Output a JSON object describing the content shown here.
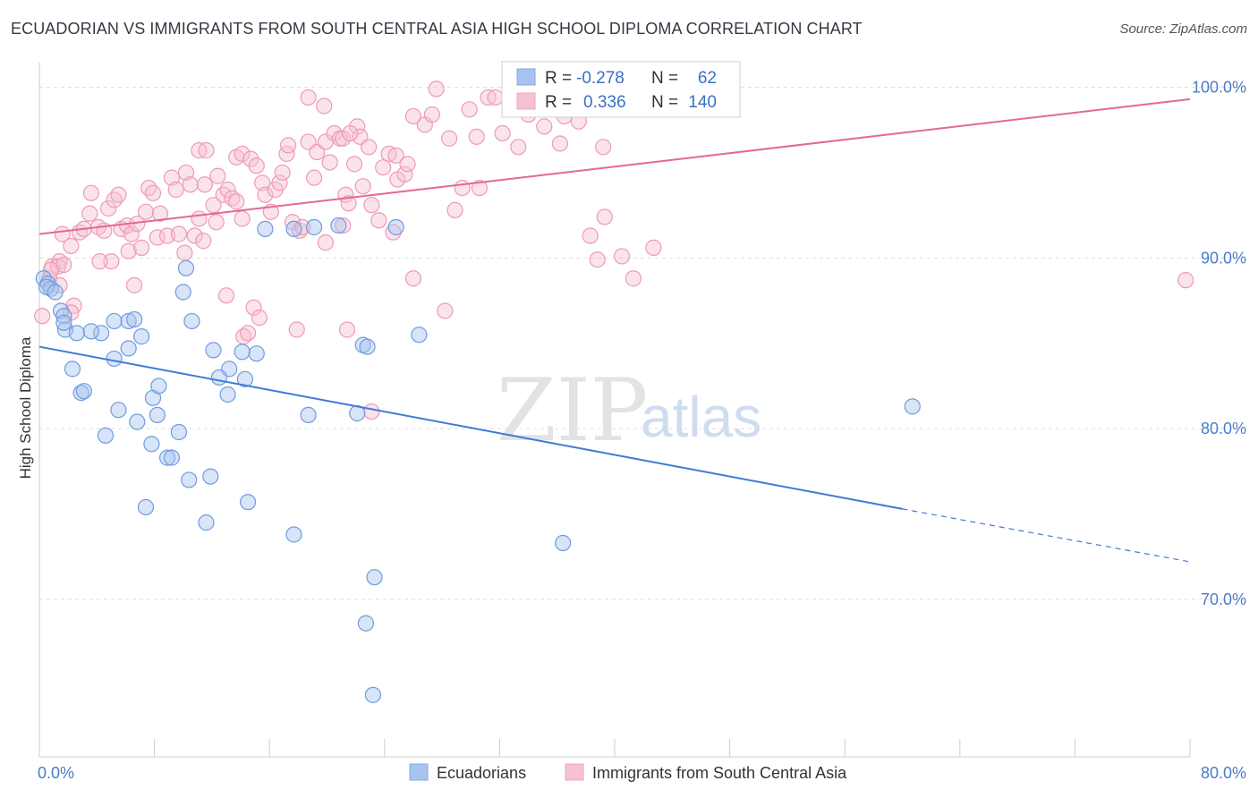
{
  "header": {
    "title": "ECUADORIAN VS IMMIGRANTS FROM SOUTH CENTRAL ASIA HIGH SCHOOL DIPLOMA CORRELATION CHART",
    "source": "Source: ZipAtlas.com"
  },
  "watermark": {
    "zip": "ZIP",
    "atlas": "atlas"
  },
  "legend_top": {
    "r_label": "R =",
    "n_label": "N =",
    "rows": [
      {
        "r": "-0.278",
        "n": "62",
        "color": "#7fa8e6"
      },
      {
        "r": "0.336",
        "n": "140",
        "color": "#f4a3bb"
      }
    ]
  },
  "legend_bottom": [
    {
      "label": "Ecuadorians",
      "color": "#7fa8e6"
    },
    {
      "label": "Immigrants from South Central Asia",
      "color": "#f4a3bb"
    }
  ],
  "colors": {
    "blue": "#3f7ad6",
    "pink": "#e36991",
    "blue_fill": "#a8c4ee",
    "pink_fill": "#f6c1d1",
    "grid": "#dddddd",
    "tick_text": "#4a7cc7"
  },
  "chart_data": {
    "type": "scatter",
    "title": "ECUADORIAN VS IMMIGRANTS FROM SOUTH CENTRAL ASIA HIGH SCHOOL DIPLOMA CORRELATION CHART",
    "ylabel": "High School Diploma",
    "xlabel": "",
    "xlim": [
      0,
      80
    ],
    "ylim": [
      62,
      101.5
    ],
    "x_tick_labels": [
      "0.0%",
      "80.0%"
    ],
    "y_ticks": [
      70,
      80,
      90,
      100
    ],
    "y_tick_labels": [
      "70.0%",
      "80.0%",
      "90.0%",
      "100.0%"
    ],
    "grid": "horizontal dashed",
    "series": [
      {
        "name": "Ecuadorians",
        "R": -0.278,
        "N": 62,
        "trend": {
          "x0": 0,
          "y0": 84.8,
          "x1": 60,
          "y1": 75.3,
          "dashed_to_x": 80,
          "dashed_y": 72.2
        },
        "points": [
          [
            0.3,
            88.8
          ],
          [
            0.6,
            88.5
          ],
          [
            0.8,
            88.2
          ],
          [
            0.5,
            88.3
          ],
          [
            1.1,
            88.0
          ],
          [
            1.5,
            86.9
          ],
          [
            1.7,
            86.6
          ],
          [
            1.8,
            85.8
          ],
          [
            1.7,
            86.2
          ],
          [
            2.6,
            85.6
          ],
          [
            4.3,
            85.6
          ],
          [
            3.6,
            85.7
          ],
          [
            5.2,
            86.3
          ],
          [
            6.2,
            86.3
          ],
          [
            6.6,
            86.4
          ],
          [
            7.1,
            85.4
          ],
          [
            6.2,
            84.7
          ],
          [
            5.2,
            84.1
          ],
          [
            2.3,
            83.5
          ],
          [
            2.9,
            82.1
          ],
          [
            3.1,
            82.2
          ],
          [
            5.5,
            81.1
          ],
          [
            6.8,
            80.4
          ],
          [
            7.9,
            81.8
          ],
          [
            8.3,
            82.5
          ],
          [
            8.2,
            80.8
          ],
          [
            9.7,
            79.8
          ],
          [
            7.8,
            79.1
          ],
          [
            4.6,
            79.6
          ],
          [
            8.9,
            78.3
          ],
          [
            9.2,
            78.3
          ],
          [
            10.4,
            77.0
          ],
          [
            11.9,
            77.2
          ],
          [
            7.4,
            75.4
          ],
          [
            11.6,
            74.5
          ],
          [
            14.5,
            75.7
          ],
          [
            17.7,
            73.8
          ],
          [
            12.1,
            84.6
          ],
          [
            13.2,
            83.5
          ],
          [
            12.5,
            83.0
          ],
          [
            14.1,
            84.5
          ],
          [
            15.1,
            84.4
          ],
          [
            14.3,
            82.9
          ],
          [
            13.1,
            82.0
          ],
          [
            18.7,
            80.8
          ],
          [
            22.1,
            80.9
          ],
          [
            22.5,
            84.9
          ],
          [
            22.8,
            84.8
          ],
          [
            10.2,
            89.4
          ],
          [
            10.0,
            88.0
          ],
          [
            10.6,
            86.3
          ],
          [
            15.7,
            91.7
          ],
          [
            17.7,
            91.7
          ],
          [
            19.1,
            91.8
          ],
          [
            20.8,
            91.9
          ],
          [
            24.8,
            91.8
          ],
          [
            26.4,
            85.5
          ],
          [
            23.3,
            71.3
          ],
          [
            22.7,
            68.6
          ],
          [
            23.2,
            64.4
          ],
          [
            60.7,
            81.3
          ],
          [
            36.4,
            73.3
          ]
        ]
      },
      {
        "name": "Immigrants from South Central Asia",
        "R": 0.336,
        "N": 140,
        "trend": {
          "x0": 0,
          "y0": 91.4,
          "x1": 80,
          "y1": 99.3
        },
        "points": [
          [
            0.2,
            86.6
          ],
          [
            0.7,
            88.8
          ],
          [
            0.9,
            89.5
          ],
          [
            1.4,
            89.8
          ],
          [
            1.3,
            89.5
          ],
          [
            1.7,
            89.6
          ],
          [
            0.8,
            89.3
          ],
          [
            1.4,
            88.4
          ],
          [
            2.4,
            87.2
          ],
          [
            2.2,
            86.8
          ],
          [
            1.6,
            91.4
          ],
          [
            2.2,
            90.7
          ],
          [
            2.8,
            91.5
          ],
          [
            3.1,
            91.7
          ],
          [
            3.5,
            92.6
          ],
          [
            3.6,
            93.8
          ],
          [
            4.1,
            91.8
          ],
          [
            4.5,
            91.6
          ],
          [
            4.8,
            92.9
          ],
          [
            5.2,
            93.4
          ],
          [
            5.5,
            93.7
          ],
          [
            5.0,
            89.8
          ],
          [
            5.7,
            91.7
          ],
          [
            6.1,
            91.9
          ],
          [
            6.2,
            90.4
          ],
          [
            7.1,
            90.6
          ],
          [
            6.4,
            91.4
          ],
          [
            6.8,
            92.0
          ],
          [
            7.4,
            92.7
          ],
          [
            7.6,
            94.1
          ],
          [
            7.9,
            93.8
          ],
          [
            8.4,
            92.6
          ],
          [
            8.2,
            91.2
          ],
          [
            8.9,
            91.3
          ],
          [
            9.2,
            94.7
          ],
          [
            9.5,
            94.0
          ],
          [
            9.7,
            91.4
          ],
          [
            10.2,
            95.0
          ],
          [
            10.5,
            94.3
          ],
          [
            10.1,
            90.3
          ],
          [
            10.8,
            91.3
          ],
          [
            11.1,
            92.3
          ],
          [
            11.4,
            91.0
          ],
          [
            11.5,
            94.3
          ],
          [
            11.1,
            96.3
          ],
          [
            11.6,
            96.3
          ],
          [
            12.1,
            93.1
          ],
          [
            12.3,
            92.1
          ],
          [
            12.4,
            94.8
          ],
          [
            12.8,
            93.7
          ],
          [
            13.1,
            94.0
          ],
          [
            13.4,
            93.5
          ],
          [
            13.7,
            93.3
          ],
          [
            13.7,
            95.9
          ],
          [
            14.1,
            96.1
          ],
          [
            14.1,
            92.3
          ],
          [
            14.7,
            95.8
          ],
          [
            15.1,
            95.4
          ],
          [
            15.5,
            94.4
          ],
          [
            15.7,
            93.7
          ],
          [
            16.1,
            92.7
          ],
          [
            16.4,
            94.0
          ],
          [
            16.7,
            94.4
          ],
          [
            16.9,
            95.0
          ],
          [
            17.2,
            96.1
          ],
          [
            17.3,
            96.6
          ],
          [
            17.6,
            92.1
          ],
          [
            18.1,
            91.6
          ],
          [
            18.3,
            91.8
          ],
          [
            18.7,
            96.8
          ],
          [
            19.1,
            94.7
          ],
          [
            19.3,
            96.2
          ],
          [
            19.9,
            96.8
          ],
          [
            20.2,
            95.6
          ],
          [
            20.5,
            97.3
          ],
          [
            20.9,
            97.0
          ],
          [
            21.3,
            93.7
          ],
          [
            21.5,
            93.2
          ],
          [
            21.9,
            95.5
          ],
          [
            22.1,
            97.7
          ],
          [
            22.3,
            97.1
          ],
          [
            22.9,
            96.5
          ],
          [
            23.1,
            93.1
          ],
          [
            23.6,
            92.2
          ],
          [
            23.9,
            95.3
          ],
          [
            24.3,
            96.1
          ],
          [
            24.8,
            96.0
          ],
          [
            24.9,
            94.6
          ],
          [
            25.4,
            94.9
          ],
          [
            25.6,
            95.5
          ],
          [
            26.0,
            98.3
          ],
          [
            26.8,
            97.8
          ],
          [
            27.3,
            98.4
          ],
          [
            27.6,
            99.9
          ],
          [
            28.5,
            97.0
          ],
          [
            29.4,
            94.1
          ],
          [
            29.9,
            98.7
          ],
          [
            30.4,
            97.1
          ],
          [
            31.2,
            99.4
          ],
          [
            31.7,
            99.4
          ],
          [
            32.2,
            97.3
          ],
          [
            33.3,
            96.5
          ],
          [
            34.0,
            98.4
          ],
          [
            35.1,
            97.7
          ],
          [
            36.2,
            96.7
          ],
          [
            36.5,
            98.3
          ],
          [
            37.5,
            98.0
          ],
          [
            36.9,
            100.0
          ],
          [
            37.9,
            99.4
          ],
          [
            38.6,
            99.1
          ],
          [
            39.2,
            96.5
          ],
          [
            38.3,
            91.3
          ],
          [
            38.8,
            89.9
          ],
          [
            39.3,
            92.4
          ],
          [
            40.5,
            90.1
          ],
          [
            41.3,
            88.8
          ],
          [
            42.7,
            90.6
          ],
          [
            18.7,
            99.4
          ],
          [
            19.8,
            98.9
          ],
          [
            21.1,
            97.0
          ],
          [
            21.6,
            97.3
          ],
          [
            22.5,
            94.2
          ],
          [
            26.0,
            88.8
          ],
          [
            28.2,
            86.9
          ],
          [
            28.9,
            92.8
          ],
          [
            30.6,
            94.1
          ],
          [
            32.9,
            99.9
          ],
          [
            34.4,
            100.0
          ],
          [
            19.9,
            90.9
          ],
          [
            21.1,
            91.9
          ],
          [
            13.0,
            87.8
          ],
          [
            14.9,
            87.1
          ],
          [
            15.3,
            86.5
          ],
          [
            14.2,
            85.4
          ],
          [
            14.5,
            85.6
          ],
          [
            17.9,
            85.8
          ],
          [
            21.4,
            85.8
          ],
          [
            23.1,
            81.0
          ],
          [
            6.6,
            88.4
          ],
          [
            4.2,
            89.8
          ],
          [
            79.7,
            88.7
          ],
          [
            24.6,
            91.5
          ]
        ]
      }
    ]
  }
}
